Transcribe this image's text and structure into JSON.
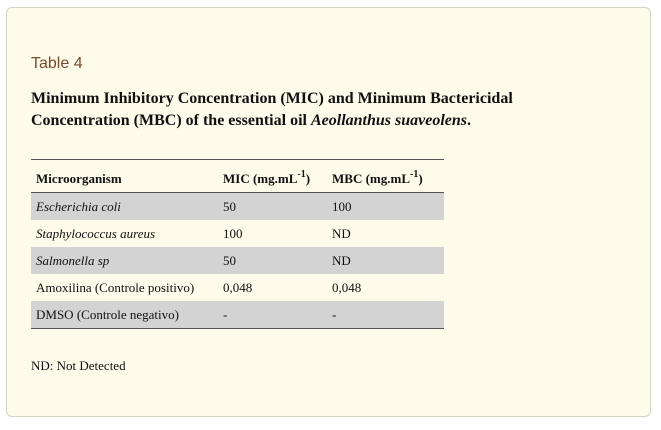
{
  "table_label": "Table 4",
  "caption": {
    "prefix": "Minimum Inhibitory Concentration (MIC) and Minimum Bactericidal Concentration (MBC) of the essential oil ",
    "species": "Aeollanthus suaveolens",
    "suffix": "."
  },
  "headers": {
    "col1": "Microorganism",
    "col2_base": "MIC (mg.mL",
    "col2_sup": "-1",
    "col2_end": ")",
    "col3_base": "MBC (mg.mL",
    "col3_sup": "-1",
    "col3_end": ")"
  },
  "rows": [
    {
      "organism": "Escherichia coli",
      "mic": "50",
      "mbc": "100"
    },
    {
      "organism": "Staphylococcus aureus",
      "mic": "100",
      "mbc": "ND"
    },
    {
      "organism": "Salmonella sp",
      "mic": "50",
      "mbc": "ND"
    },
    {
      "organism": "Amoxilina (Controle positivo)",
      "mic": "0,048",
      "mbc": "0,048"
    },
    {
      "organism": "DMSO (Controle negativo)",
      "mic": "-",
      "mbc": "-"
    }
  ],
  "footnote": "ND: Not Detected",
  "colors": {
    "panel_bg": "#fdfbea",
    "label_color": "#7a4a2a",
    "row_shade": "#d3d3d3"
  }
}
